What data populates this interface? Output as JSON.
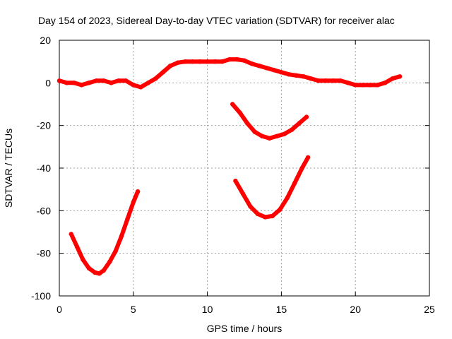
{
  "chart_data": {
    "type": "line",
    "title": "Day 154 of 2023, Sidereal Day-to-day VTEC variation (SDTVAR) for receiver alac",
    "xlabel": "GPS time / hours",
    "ylabel": "SDTVAR / TECUs",
    "xlim": [
      0,
      25
    ],
    "ylim": [
      -100,
      20
    ],
    "xticks": [
      0,
      5,
      10,
      15,
      20,
      25
    ],
    "yticks": [
      20,
      0,
      -20,
      -40,
      -60,
      -80,
      -100
    ],
    "grid": true,
    "series_color": "#ff0000",
    "series": [
      {
        "name": "main trace",
        "x": [
          0,
          0.5,
          1,
          1.5,
          2,
          2.5,
          3,
          3.5,
          4,
          4.5,
          5,
          5.5,
          6,
          6.5,
          7,
          7.5,
          8,
          8.5,
          9,
          9.5,
          10,
          10.5,
          11,
          11.5,
          12,
          12.5,
          13,
          13.5,
          14,
          14.5,
          15,
          15.5,
          16,
          16.5,
          17,
          17.5,
          18,
          18.5,
          19,
          19.5,
          20,
          20.5,
          21,
          21.5,
          22,
          22.5,
          23
        ],
        "y": [
          1,
          0,
          0,
          -1,
          0,
          1,
          1,
          0,
          1,
          1,
          -1,
          -2,
          0,
          2,
          5,
          8,
          9.5,
          10,
          10,
          10,
          10,
          10,
          10,
          11,
          11,
          10.5,
          9,
          8,
          7,
          6,
          5,
          4,
          3.5,
          3,
          2,
          1,
          1,
          1,
          1,
          0,
          -1,
          -1,
          -1,
          -1,
          0,
          2,
          3
        ]
      },
      {
        "name": "arc 1",
        "x": [
          0.8,
          1.2,
          1.6,
          2.0,
          2.4,
          2.7,
          3.0,
          3.4,
          3.8,
          4.2,
          4.6,
          5.0,
          5.3
        ],
        "y": [
          -71,
          -77,
          -83,
          -87,
          -89,
          -89.5,
          -88,
          -84,
          -79,
          -72,
          -64,
          -56,
          -51
        ]
      },
      {
        "name": "arc 2",
        "x": [
          11.7,
          12.2,
          12.7,
          13.2,
          13.7,
          14.2,
          14.7,
          15.2,
          15.7,
          16.2,
          16.7
        ],
        "y": [
          -10,
          -14,
          -19,
          -23,
          -25,
          -26,
          -25,
          -24,
          -22,
          -19,
          -16
        ]
      },
      {
        "name": "arc 3",
        "x": [
          11.9,
          12.4,
          12.9,
          13.4,
          13.9,
          14.4,
          14.9,
          15.4,
          15.9,
          16.4,
          16.8
        ],
        "y": [
          -46,
          -52,
          -58,
          -61.5,
          -63,
          -62.5,
          -59.5,
          -54,
          -47,
          -40,
          -35
        ]
      }
    ]
  }
}
